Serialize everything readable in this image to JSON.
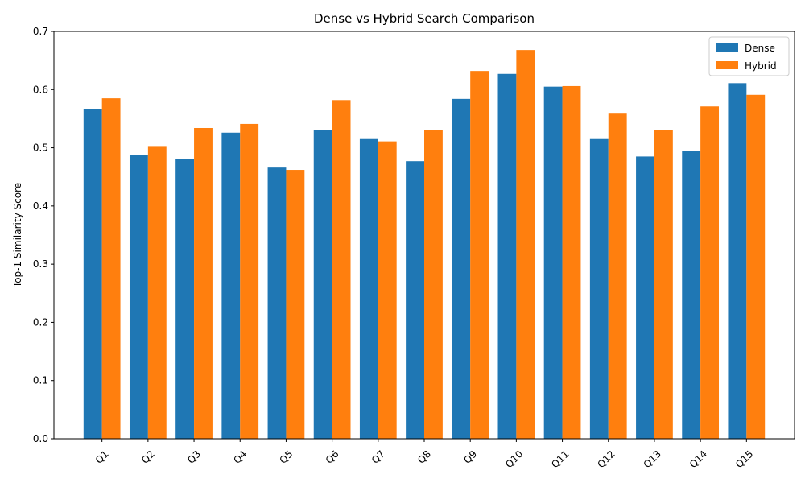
{
  "chart_data": {
    "type": "bar",
    "title": "Dense vs Hybrid Search Comparison",
    "xlabel": "",
    "ylabel": "Top-1 Similarity Score",
    "ylim": [
      0,
      0.7
    ],
    "yticks": [
      "0.0",
      "0.1",
      "0.2",
      "0.3",
      "0.4",
      "0.5",
      "0.6",
      "0.7"
    ],
    "categories": [
      "Q1",
      "Q2",
      "Q3",
      "Q4",
      "Q5",
      "Q6",
      "Q7",
      "Q8",
      "Q9",
      "Q10",
      "Q11",
      "Q12",
      "Q13",
      "Q14",
      "Q15"
    ],
    "series": [
      {
        "name": "Dense",
        "color": "#1f77b4",
        "values": [
          0.566,
          0.487,
          0.481,
          0.526,
          0.466,
          0.531,
          0.515,
          0.477,
          0.584,
          0.627,
          0.605,
          0.515,
          0.485,
          0.495,
          0.611
        ]
      },
      {
        "name": "Hybrid",
        "color": "#ff7f0e",
        "values": [
          0.585,
          0.503,
          0.534,
          0.541,
          0.462,
          0.582,
          0.511,
          0.531,
          0.632,
          0.668,
          0.606,
          0.56,
          0.531,
          0.571,
          0.591
        ]
      }
    ],
    "legend": "top-right",
    "grid": false
  }
}
